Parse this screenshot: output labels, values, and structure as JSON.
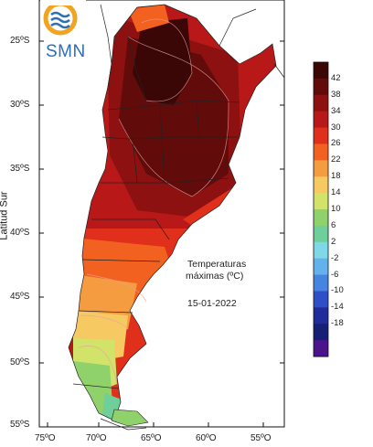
{
  "logo": {
    "text": "SMN"
  },
  "axis": {
    "ylabel": "Latitud Sur",
    "lat_ticks": [
      "25ºS",
      "30ºS",
      "35ºS",
      "40ºS",
      "45ºS",
      "50ºS",
      "55ºS"
    ],
    "lon_ticks": [
      "75ºO",
      "70ºO",
      "65ºO",
      "60ºO",
      "55ºO"
    ]
  },
  "legend": {
    "title_line1": "Temperaturas",
    "title_line2": "máximas (ºC)",
    "date": "15-01-2022"
  },
  "colorbar": {
    "labels": [
      "42",
      "38",
      "34",
      "30",
      "26",
      "22",
      "18",
      "14",
      "10",
      "6",
      "2",
      "-2",
      "-6",
      "-10",
      "-14",
      "-18"
    ],
    "colors": [
      "#3a0606",
      "#620b0b",
      "#8e1111",
      "#b81818",
      "#e0301c",
      "#f2611f",
      "#f59b40",
      "#f6c963",
      "#d2e36a",
      "#8fd16a",
      "#6fcf9a",
      "#7fd8e8",
      "#63b2ec",
      "#4584e0",
      "#2f4fc8",
      "#1f2c9a",
      "#161f74",
      "#4a148c"
    ]
  }
}
